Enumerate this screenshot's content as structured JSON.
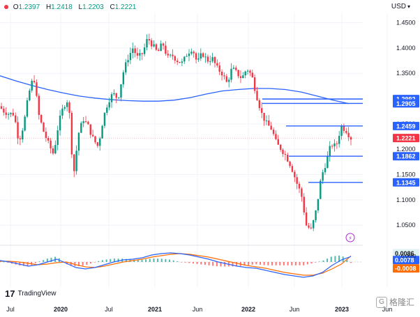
{
  "header": {
    "ohlc": [
      {
        "label": "O",
        "value": "1.2397"
      },
      {
        "label": "H",
        "value": "1.2418"
      },
      {
        "label": "L",
        "value": "1.2203"
      },
      {
        "label": "C",
        "value": "1.2221"
      }
    ],
    "currency": "USD"
  },
  "branding": {
    "tradingview": "TradingView",
    "watermark": "格隆汇"
  },
  "colors": {
    "up": "#089981",
    "down": "#f23645",
    "ma": "#2962ff",
    "level": "#2962ff",
    "macd_line": "#2962ff",
    "signal_line": "#ff6d00",
    "axis_text": "#131722"
  },
  "chart_data": {
    "type": "candlestick",
    "instrument_unit": "USD",
    "price_axis": {
      "ticks": [
        "1.4500",
        "1.4000",
        "1.3500",
        "1.3000",
        "1.2500",
        "1.2000",
        "1.1500",
        "1.1000",
        "1.0500"
      ],
      "ylim": [
        1.02,
        1.47
      ]
    },
    "time_axis": {
      "ticks": [
        "Jul",
        "2020",
        "Jul",
        "2021",
        "Jun",
        "2022",
        "Jun",
        "2023",
        "Jun"
      ]
    },
    "last_price_label": "1.2221",
    "horizontal_levels": [
      {
        "label": "1.2992",
        "value": 1.2992
      },
      {
        "label": "1.2905",
        "value": 1.2905
      },
      {
        "label": "1.2459",
        "value": 1.2459
      },
      {
        "label": "1.1862",
        "value": 1.1862
      },
      {
        "label": "1.1345",
        "value": 1.1345
      }
    ],
    "moving_average": [
      1.345,
      1.335,
      1.326,
      1.318,
      1.311,
      1.305,
      1.301,
      1.298,
      1.296,
      1.295,
      1.295,
      1.297,
      1.302,
      1.309,
      1.315,
      1.318,
      1.32,
      1.32,
      1.318,
      1.313,
      1.305,
      1.297,
      1.29
    ],
    "swing_path": [
      1.285,
      1.275,
      1.27,
      1.27,
      1.215,
      1.25,
      1.31,
      1.345,
      1.268,
      1.235,
      1.21,
      1.19,
      1.25,
      1.285,
      1.3,
      1.145,
      1.23,
      1.26,
      1.245,
      1.22,
      1.205,
      1.26,
      1.295,
      1.31,
      1.3,
      1.35,
      1.38,
      1.4,
      1.38,
      1.39,
      1.42,
      1.405,
      1.39,
      1.41,
      1.38,
      1.385,
      1.375,
      1.37,
      1.39,
      1.4,
      1.37,
      1.39,
      1.375,
      1.38,
      1.36,
      1.35,
      1.33,
      1.36,
      1.35,
      1.34,
      1.36,
      1.345,
      1.305,
      1.27,
      1.25,
      1.24,
      1.21,
      1.2,
      1.185,
      1.165,
      1.135,
      1.11,
      1.05,
      1.04,
      1.08,
      1.145,
      1.175,
      1.21,
      1.205,
      1.245,
      1.238,
      1.2221
    ],
    "oscillator": {
      "labels": [
        "0.0086",
        "0.0078",
        "-0.0008"
      ],
      "ticks": [
        "0.0000"
      ],
      "macd": [
        0.002,
        0.0,
        -0.003,
        -0.006,
        -0.004,
        0.0,
        0.004,
        -0.002,
        -0.008,
        -0.01,
        -0.008,
        -0.004,
        0.0,
        0.003,
        0.004,
        0.006,
        0.01,
        0.012,
        0.013,
        0.012,
        0.01,
        0.007,
        0.004,
        0.0,
        -0.003,
        -0.006,
        -0.008,
        -0.009,
        -0.012,
        -0.015,
        -0.018,
        -0.02,
        -0.022,
        -0.02,
        -0.015,
        -0.005,
        0.003,
        0.0078
      ],
      "signal": [
        0.001,
        0.001,
        0.0,
        -0.002,
        -0.004,
        -0.003,
        -0.001,
        0.0,
        -0.004,
        -0.007,
        -0.008,
        -0.006,
        -0.003,
        0.0,
        0.002,
        0.004,
        0.007,
        0.009,
        0.011,
        0.012,
        0.011,
        0.009,
        0.007,
        0.004,
        0.001,
        -0.002,
        -0.005,
        -0.007,
        -0.009,
        -0.012,
        -0.015,
        -0.017,
        -0.019,
        -0.019,
        -0.016,
        -0.01,
        -0.003,
        0.0086
      ],
      "histogram_last": -0.0008
    }
  }
}
